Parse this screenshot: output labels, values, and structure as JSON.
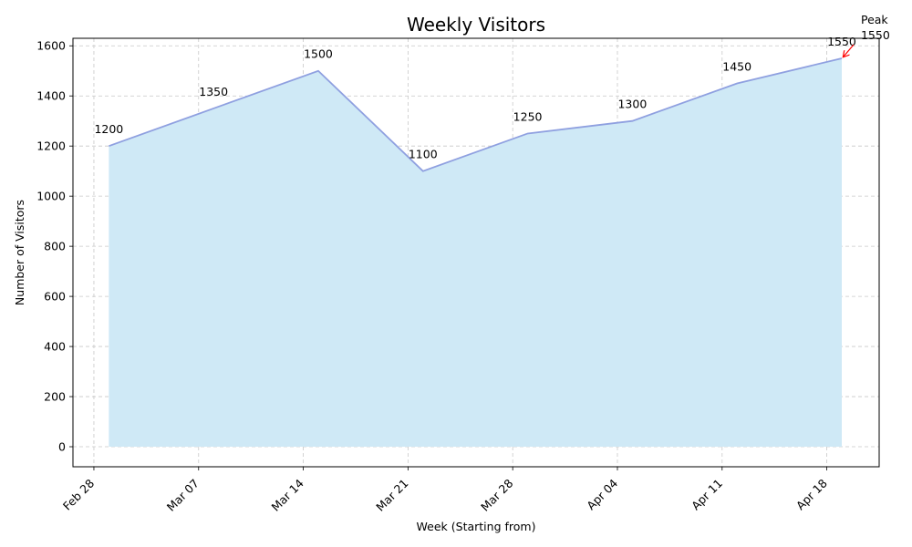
{
  "chart_data": {
    "type": "area",
    "title": "Weekly Visitors",
    "xlabel": "Week (Starting from)",
    "ylabel": "Number of Visitors",
    "x_ticks": [
      "Feb 28",
      "Mar 07",
      "Mar 14",
      "Mar 21",
      "Mar 28",
      "Apr 04",
      "Apr 11",
      "Apr 18"
    ],
    "x_tick_days": [
      0,
      7,
      14,
      21,
      28,
      35,
      42,
      49
    ],
    "xlim_days": [
      -1.4,
      52.5
    ],
    "ylim": [
      -80,
      1630
    ],
    "y_ticks": [
      0,
      200,
      400,
      600,
      800,
      1000,
      1200,
      1400,
      1600
    ],
    "grid": true,
    "series": [
      {
        "name": "Weekly Visitors",
        "x_days": [
          1,
          8,
          15,
          22,
          29,
          36,
          43,
          50
        ],
        "values": [
          1200,
          1350,
          1500,
          1100,
          1250,
          1300,
          1450,
          1550
        ],
        "line_color": "#8fa0e0",
        "fill_color": "#cfe9f6"
      }
    ],
    "annotation": {
      "text_line1": "Peak",
      "text_line2": "1550",
      "target_index": 7,
      "arrow_color": "#ff0000"
    }
  }
}
